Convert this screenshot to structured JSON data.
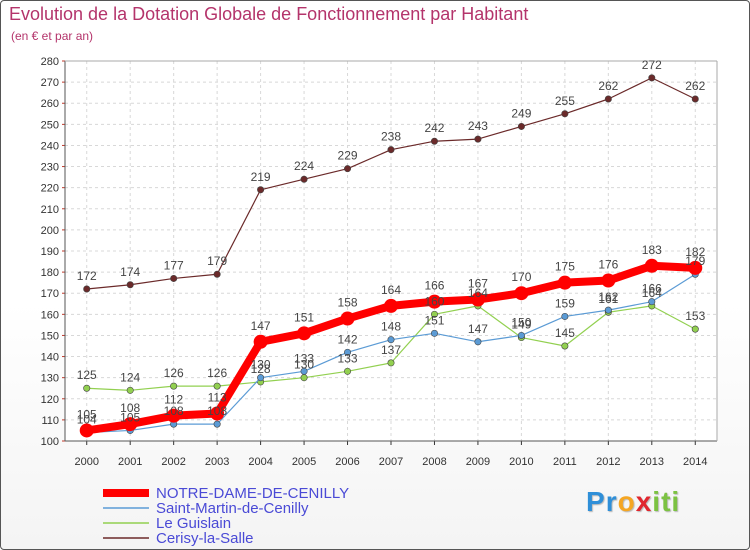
{
  "chart_data": {
    "type": "line",
    "title": "Evolution de la Dotation Globale de Fonctionnement par Habitant",
    "subtitle": "(en € et par an)",
    "xlabel": "",
    "ylabel": "",
    "ylim": [
      100,
      280
    ],
    "y_tick_step": 10,
    "grid": true,
    "legend_position": "bottom-left",
    "categories": [
      "2000",
      "2001",
      "2002",
      "2003",
      "2004",
      "2005",
      "2006",
      "2007",
      "2008",
      "2009",
      "2010",
      "2011",
      "2012",
      "2013",
      "2014"
    ],
    "series": [
      {
        "name": "NOTRE-DAME-DE-CENILLY",
        "color": "#ff0000",
        "values": [
          105,
          108,
          112,
          113,
          147,
          151,
          158,
          164,
          166,
          167,
          170,
          175,
          176,
          183,
          182
        ]
      },
      {
        "name": "Saint-Martin-de-Cenilly",
        "color": "#5b9bd5",
        "values": [
          104,
          105,
          108,
          108,
          130,
          133,
          142,
          148,
          151,
          147,
          150,
          159,
          162,
          166,
          179
        ]
      },
      {
        "name": "Le Guislain",
        "color": "#92d050",
        "values": [
          125,
          124,
          126,
          126,
          128,
          130,
          133,
          137,
          160,
          164,
          149,
          145,
          161,
          164,
          153
        ]
      },
      {
        "name": "Cerisy-la-Salle",
        "color": "#6b2a2a",
        "values": [
          172,
          174,
          177,
          179,
          219,
          224,
          229,
          238,
          242,
          243,
          249,
          255,
          262,
          272,
          262
        ]
      }
    ],
    "data_labels": {
      "NOTRE-DAME-DE-CENILLY": [
        "105",
        "108",
        "112",
        "113",
        "147",
        "151",
        "158",
        "164",
        "166",
        "167",
        "170",
        "175",
        "176",
        "183",
        "182"
      ],
      "Saint-Martin-de-Cenilly": [
        "104",
        "105",
        "108",
        "108",
        "130",
        "133",
        "142",
        "148",
        "151",
        "147",
        "150",
        "159",
        "162",
        "166",
        "179"
      ],
      "Le Guislain": [
        "125",
        "124",
        "126",
        "126",
        "128",
        "130",
        "133",
        "137",
        "160",
        "164",
        "149",
        "145",
        "161",
        "164",
        "153"
      ],
      "Cerisy-la-Salle": [
        "172",
        "174",
        "177",
        "179",
        "219",
        "224",
        "229",
        "238",
        "242",
        "243",
        "249",
        "255",
        "262",
        "272",
        "262"
      ]
    }
  },
  "logo": {
    "letters": [
      "P",
      "r",
      "o",
      "x",
      "i",
      "t",
      "i"
    ],
    "colors": [
      "#2f8fd8",
      "#2f8fd8",
      "#f5a623",
      "#e0262e",
      "#7cc242",
      "#7cc242",
      "#7cc242"
    ]
  }
}
